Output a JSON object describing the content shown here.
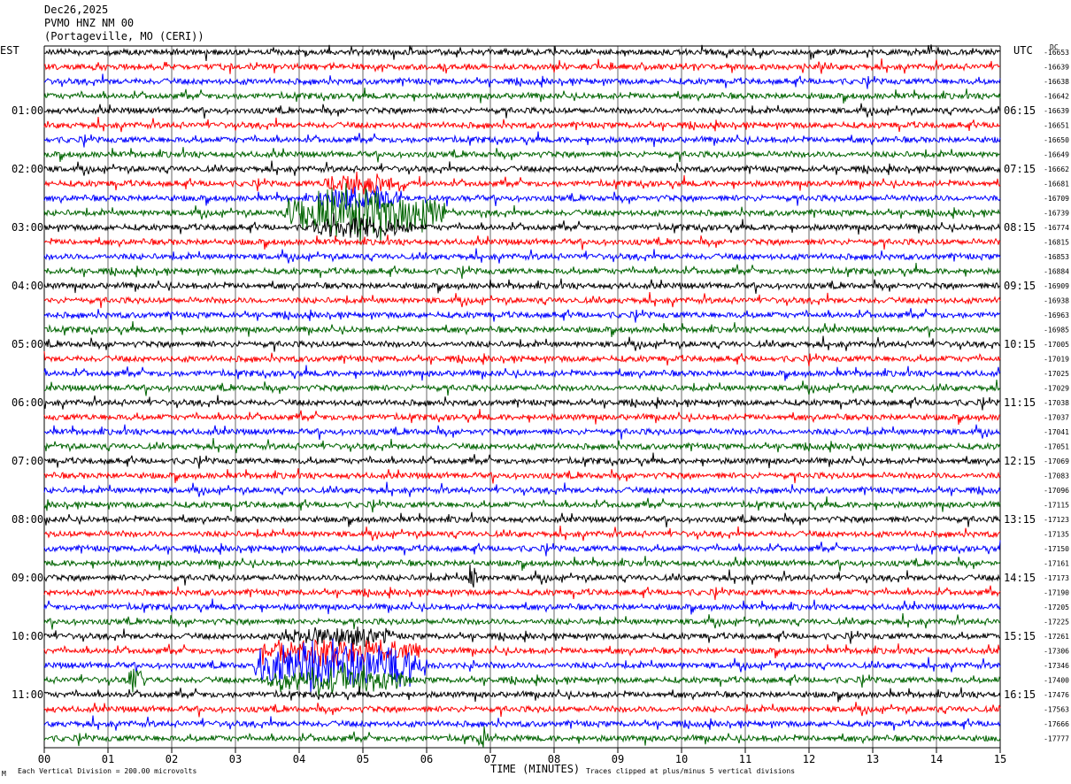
{
  "header": {
    "date": "Dec26,2025",
    "station": "PVMO HNZ NM 00",
    "location": "(Portageville, MO (CERI))"
  },
  "left_axis_label": "EST",
  "right_axis_label": "UTC",
  "dc_label": "DC",
  "footer": {
    "scale_note": "Each Vertical Division =  200.00 microvolts",
    "clip_note": "Traces clipped at plus/minus 5 vertical divisions",
    "corner_mark": "M"
  },
  "colors": {
    "trace_cycle": [
      "#000000",
      "#ff0000",
      "#0000ff",
      "#006400"
    ],
    "grid": "#000000"
  },
  "chart_data": {
    "type": "line",
    "xlabel": "TIME (MINUTES)",
    "x_ticks": [
      "00",
      "01",
      "02",
      "03",
      "04",
      "05",
      "06",
      "07",
      "08",
      "09",
      "10",
      "11",
      "12",
      "13",
      "14",
      "15"
    ],
    "xlim": [
      0,
      15
    ],
    "est_hour_labels": [
      "01:00",
      "02:00",
      "03:00",
      "04:00",
      "05:00",
      "06:00",
      "07:00",
      "08:00",
      "09:00",
      "10:00",
      "11:00"
    ],
    "utc_hour_labels": [
      "06:15",
      "07:15",
      "08:15",
      "09:15",
      "10:15",
      "11:15",
      "12:15",
      "13:15",
      "14:15",
      "15:15",
      "16:15"
    ],
    "dc_offsets": [
      -16653,
      -16639,
      -16638,
      -16642,
      -16639,
      -16651,
      -16650,
      -16649,
      -16662,
      -16681,
      -16709,
      -16739,
      -16774,
      -16815,
      -16853,
      -16884,
      -16909,
      -16938,
      -16963,
      -16985,
      -17005,
      -17019,
      -17025,
      -17029,
      -17038,
      -17037,
      -17041,
      -17051,
      -17069,
      -17083,
      -17096,
      -17115,
      -17123,
      -17135,
      -17150,
      -17161,
      -17173,
      -17190,
      -17205,
      -17225,
      -17261,
      -17306,
      -17346,
      -17400,
      -17476,
      -17563,
      -17666,
      -17777
    ],
    "events": [
      {
        "trace": 11,
        "x_start": 3.8,
        "x_end": 6.3,
        "strength": 3.2
      },
      {
        "trace": 10,
        "x_start": 4.3,
        "x_end": 5.6,
        "strength": 1.4
      },
      {
        "trace": 9,
        "x_start": 4.4,
        "x_end": 5.7,
        "strength": 1.3
      },
      {
        "trace": 12,
        "x_start": 4.2,
        "x_end": 5.8,
        "strength": 1.3
      },
      {
        "trace": 42,
        "x_start": 3.3,
        "x_end": 6.0,
        "strength": 3.6
      },
      {
        "trace": 41,
        "x_start": 3.4,
        "x_end": 5.9,
        "strength": 1.6
      },
      {
        "trace": 43,
        "x_start": 3.5,
        "x_end": 5.7,
        "strength": 1.5
      },
      {
        "trace": 40,
        "x_start": 3.7,
        "x_end": 5.5,
        "strength": 1.2
      },
      {
        "trace": 36,
        "x_start": 6.6,
        "x_end": 6.8,
        "strength": 1.8
      },
      {
        "trace": 47,
        "x_start": 6.8,
        "x_end": 7.0,
        "strength": 1.5
      },
      {
        "trace": 43,
        "x_start": 1.3,
        "x_end": 1.6,
        "strength": 1.6
      }
    ]
  }
}
